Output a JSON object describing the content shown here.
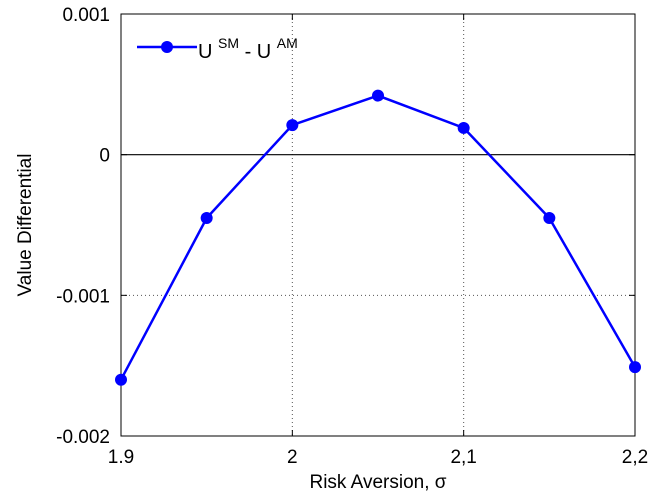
{
  "chart_data": {
    "type": "line",
    "title": "",
    "xlabel": "Risk Aversion,  σ",
    "ylabel": "Value Differential",
    "xlim": [
      1.9,
      2.2
    ],
    "ylim": [
      -0.002,
      0.001
    ],
    "x_ticks": [
      1.9,
      2.0,
      2.1,
      2.2
    ],
    "x_tick_labels": [
      "1.9",
      "2",
      "2,1",
      "2,2"
    ],
    "y_ticks": [
      -0.002,
      -0.001,
      0,
      0.001
    ],
    "y_tick_labels": [
      "-0.002",
      "-0.001",
      "0",
      "0.001"
    ],
    "grid": true,
    "zero_line": true,
    "legend_position": "top-left",
    "series": [
      {
        "legend": {
          "main_1": "U",
          "sup_1": "SM",
          "main_2": " - U ",
          "sup_2": "AM"
        },
        "color": "#0000ff",
        "x": [
          1.9,
          1.95,
          2.0,
          2.05,
          2.1,
          2.15,
          2.2
        ],
        "y": [
          -0.0016,
          -0.00045,
          0.00021,
          0.00042,
          0.00019,
          -0.00045,
          -0.00151
        ]
      }
    ]
  }
}
